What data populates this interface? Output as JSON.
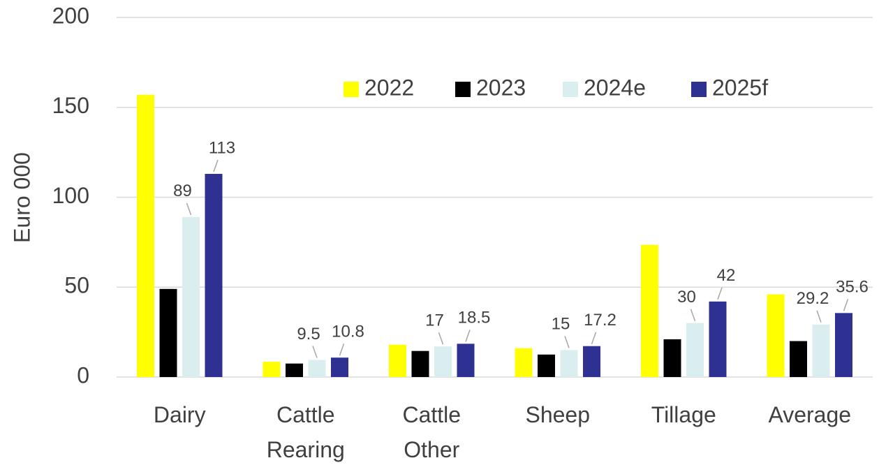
{
  "chart_data": {
    "type": "bar",
    "y_label": "Euro 000",
    "categories": [
      "Dairy",
      "Cattle Rearing",
      "Cattle Other",
      "Sheep",
      "Tillage",
      "Average"
    ],
    "series": [
      {
        "name": "2022",
        "color": "#ffff00",
        "values": [
          157,
          8.5,
          18,
          16,
          73.5,
          46
        ]
      },
      {
        "name": "2023",
        "color": "#000000",
        "values": [
          49,
          7.5,
          14.5,
          12.5,
          21,
          20
        ]
      },
      {
        "name": "2024e",
        "color": "#daeef0",
        "values": [
          89,
          9.5,
          17,
          15,
          30,
          29.2
        ],
        "data_labels": true
      },
      {
        "name": "2025f",
        "color": "#2e3192",
        "values": [
          113,
          10.8,
          18.5,
          17.2,
          42,
          35.6
        ],
        "data_labels": true
      }
    ],
    "ylim": [
      0,
      200
    ],
    "yticks": [
      0,
      50,
      100,
      150,
      200
    ],
    "grid": true,
    "legend": "top"
  }
}
